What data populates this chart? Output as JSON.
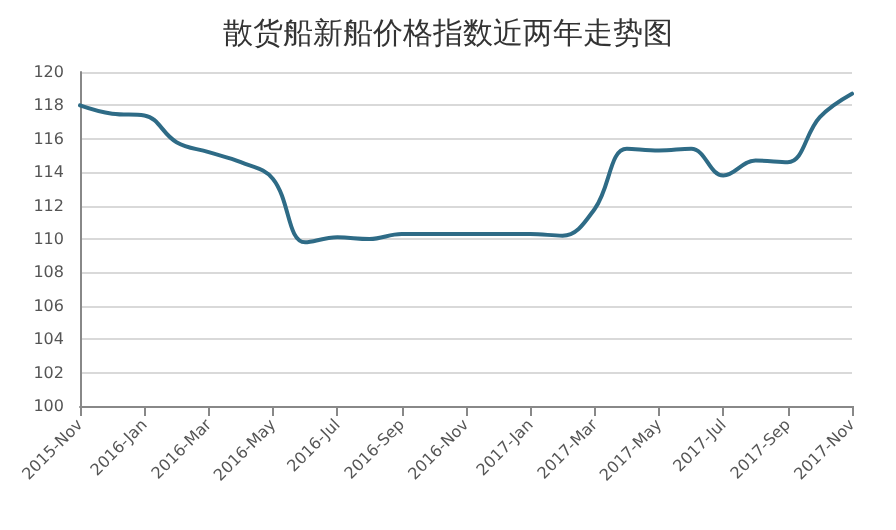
{
  "chart_data": {
    "type": "line",
    "title": "散货船新船价格指数近两年走势图",
    "categories": [
      "2015-Nov",
      null,
      "2016-Jan",
      null,
      "2016-Mar",
      null,
      "2016-May",
      null,
      "2016-Jul",
      null,
      "2016-Sep",
      null,
      "2016-Nov",
      null,
      "2017-Jan",
      null,
      "2017-Mar",
      null,
      "2017-May",
      null,
      "2017-Jul",
      null,
      "2017-Sep",
      null,
      "2017-Nov"
    ],
    "series": [
      {
        "color": "#2e6b86",
        "values": [
          118.0,
          117.5,
          117.4,
          115.8,
          115.2,
          114.6,
          113.6,
          109.8,
          110.1,
          110.0,
          110.3,
          110.3,
          110.3,
          110.3,
          110.3,
          110.2,
          111.8,
          115.4,
          115.3,
          115.4,
          113.8,
          114.7,
          114.6,
          117.3,
          118.7
        ]
      }
    ],
    "ylim": [
      100,
      120
    ],
    "yticks": [
      100,
      102,
      104,
      106,
      108,
      110,
      112,
      114,
      116,
      118,
      120
    ],
    "grid": "y",
    "marker": "none",
    "line_style": "solid"
  }
}
